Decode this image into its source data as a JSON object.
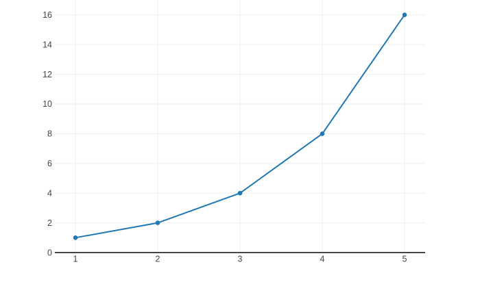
{
  "chart_data": {
    "type": "line",
    "x": [
      1,
      2,
      3,
      4,
      5
    ],
    "y": [
      1,
      2,
      4,
      8,
      16
    ],
    "title": "",
    "xlabel": "",
    "ylabel": "",
    "xlim": [
      0.75,
      5.25
    ],
    "ylim": [
      0,
      17
    ],
    "x_ticks": [
      "1",
      "2",
      "3",
      "4",
      "5"
    ],
    "x_tick_values": [
      1,
      2,
      3,
      4,
      5
    ],
    "y_ticks": [
      "0",
      "2",
      "4",
      "6",
      "8",
      "10",
      "12",
      "14",
      "16"
    ],
    "y_tick_values": [
      0,
      2,
      4,
      6,
      8,
      10,
      12,
      14,
      16
    ],
    "grid": true,
    "legend": null,
    "colors": {
      "line": "#1f77b4",
      "marker": "#1f77b4",
      "grid": "#eeeeee",
      "zeroline": "#444444",
      "tick_label": "#444444",
      "background": "#ffffff"
    }
  }
}
